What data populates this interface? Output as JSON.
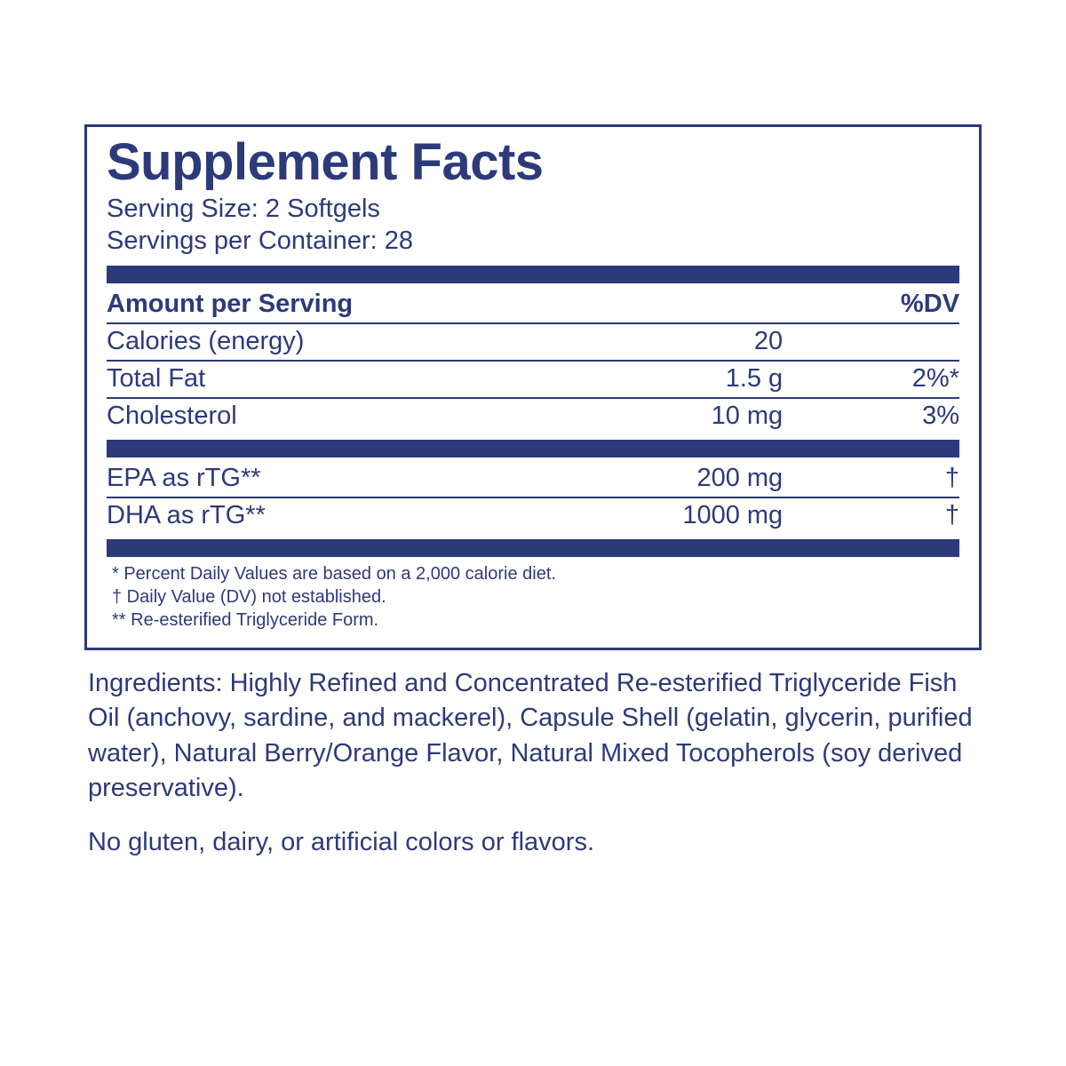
{
  "colors": {
    "text": "#2d3a7a",
    "rule": "#2d3a7a",
    "background": "#ffffff"
  },
  "title": "Supplement Facts",
  "serving_size_label": "Serving Size:",
  "serving_size_value": "2 Softgels",
  "servings_per_label": "Servings per Container:",
  "servings_per_value": "28",
  "header": {
    "amount_per_serving": "Amount per Serving",
    "dv": "%DV"
  },
  "rows_top": [
    {
      "name": "Calories (energy)",
      "amount": "20",
      "dv": ""
    },
    {
      "name": "Total Fat",
      "amount": "1.5 g",
      "dv": "2%*"
    },
    {
      "name": "Cholesterol",
      "amount": "10 mg",
      "dv": "3%"
    }
  ],
  "rows_bottom": [
    {
      "name": "EPA as rTG**",
      "amount": "200 mg",
      "dv": "†"
    },
    {
      "name": "DHA as rTG**",
      "amount": "1000 mg",
      "dv": "†"
    }
  ],
  "footnotes": [
    "* Percent Daily Values are based on a 2,000 calorie diet.",
    "† Daily Value (DV) not established.",
    "** Re-esterified Triglyceride Form."
  ],
  "ingredients": "Ingredients: Highly Refined and Concentrated Re-esterified Triglyceride Fish Oil (anchovy, sardine, and mackerel), Capsule Shell (gelatin, glycerin, purified water), Natural Berry/Orange Flavor, Natural Mixed Tocopherols (soy derived preservative).",
  "free_from": "No gluten, dairy, or artificial colors or flavors."
}
